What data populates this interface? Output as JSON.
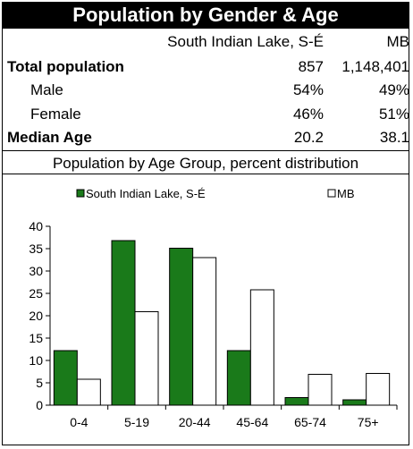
{
  "title": "Population by Gender & Age",
  "table": {
    "col1_header": "South Indian Lake, S-É",
    "col2_header": "MB",
    "rows": [
      {
        "label": "Total population",
        "v1": "857",
        "v2": "1,148,401",
        "bold": true
      },
      {
        "label": "Male",
        "v1": "54%",
        "v2": "49%",
        "bold": false
      },
      {
        "label": "Female",
        "v1": "46%",
        "v2": "51%",
        "bold": false
      },
      {
        "label": "Median Age",
        "v1": "20.2",
        "v2": "38.1",
        "bold": true
      }
    ]
  },
  "chart_subtitle": "Population by Age Group, percent distribution",
  "chart_data": {
    "type": "bar",
    "categories": [
      "0-4",
      "5-19",
      "20-44",
      "45-64",
      "65-74",
      "75+"
    ],
    "series": [
      {
        "name": "South Indian Lake, S-É",
        "values": [
          12.2,
          36.8,
          35.1,
          12.2,
          1.7,
          1.2
        ],
        "color": "#1a7a1a"
      },
      {
        "name": "MB",
        "values": [
          5.8,
          20.9,
          33.0,
          25.8,
          6.9,
          7.1
        ],
        "color": "#ffffff"
      }
    ],
    "ylim": [
      0,
      40
    ],
    "yticks": [
      0,
      5,
      10,
      15,
      20,
      25,
      30,
      35,
      40
    ],
    "legend_position": "top",
    "grid": false
  }
}
